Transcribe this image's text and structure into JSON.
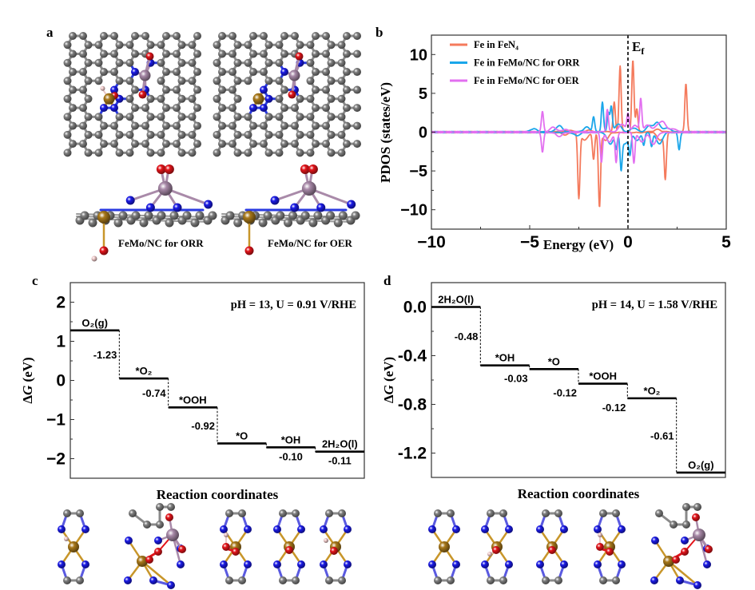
{
  "panel_labels": {
    "a": "a",
    "b": "b",
    "c": "c",
    "d": "d"
  },
  "panel_a": {
    "left_caption": "FeMo/NC for ORR",
    "right_caption": "FeMo/NC for OER"
  },
  "colors": {
    "carbon": "#7f7f7f",
    "nitrogen": "#1a1ae6",
    "oxygen": "#e3141a",
    "iron": "#a8781a",
    "molybdenum": "#a889a8",
    "hydrogen": "#efc9c9"
  },
  "chart_data": [
    {
      "id": "b",
      "type": "line",
      "title": "",
      "xlabel": "Energy (eV)",
      "ylabel": "PDOS (states/eV)",
      "xlim": [
        -10,
        5
      ],
      "ylim": [
        -12.5,
        12.5
      ],
      "xticks": [
        "−10",
        "−5",
        "0",
        "5"
      ],
      "xtick_values": [
        -10,
        -5,
        0,
        5
      ],
      "yticks": [
        "−10",
        "−5",
        "0",
        "5",
        "10"
      ],
      "ytick_values": [
        -10,
        -5,
        0,
        5,
        10
      ],
      "grid": false,
      "legend_position": "top-left",
      "fermi_level": {
        "x": 0,
        "label_main": "E",
        "label_sub": "f"
      },
      "series": [
        {
          "name": "Fe in FeN₄",
          "color": "#f47a5c",
          "up_peaks": [
            [
              -3.0,
              0.2
            ],
            [
              -2.0,
              0.2
            ],
            [
              -0.7,
              3.8
            ],
            [
              -0.4,
              8.5
            ],
            [
              0.25,
              9.2
            ],
            [
              0.45,
              3.0
            ],
            [
              1.5,
              0.3
            ],
            [
              2.95,
              6.2
            ]
          ],
          "down_peaks": [
            [
              -3.2,
              -0.3
            ],
            [
              -2.5,
              -8.4
            ],
            [
              -2.2,
              -1.0
            ],
            [
              -1.75,
              -3.5
            ],
            [
              -1.45,
              -9.5
            ],
            [
              -1.15,
              -1.0
            ],
            [
              1.65,
              -1.0
            ],
            [
              1.9,
              -5.8
            ]
          ]
        },
        {
          "name": "Fe in FeMo/NC for ORR",
          "color": "#1aa6ea",
          "up_peaks": [
            [
              -4.8,
              0.4
            ],
            [
              -3.5,
              0.8
            ],
            [
              -2.1,
              0.6
            ],
            [
              -1.75,
              1.9
            ],
            [
              -1.3,
              3.8
            ],
            [
              -1.0,
              2.5
            ],
            [
              -0.85,
              3.2
            ],
            [
              -0.5,
              1.0
            ],
            [
              0.3,
              0.5
            ],
            [
              1.1,
              0.8
            ],
            [
              1.5,
              1.2
            ],
            [
              2.0,
              0.5
            ]
          ],
          "down_peaks": [
            [
              -2.6,
              -0.4
            ],
            [
              -0.9,
              -1.5
            ],
            [
              -0.6,
              -2.0
            ],
            [
              -0.35,
              -4.3
            ],
            [
              -0.15,
              -1.5
            ],
            [
              0.1,
              -2.5
            ],
            [
              0.45,
              -1.0
            ],
            [
              0.8,
              -1.6
            ],
            [
              1.2,
              -1.8
            ],
            [
              1.6,
              -1.5
            ],
            [
              2.6,
              -2.2
            ]
          ]
        },
        {
          "name": "Fe in FeMo/NC for OER",
          "color": "#e26ff0",
          "up_peaks": [
            [
              -4.35,
              2.6
            ],
            [
              -3.8,
              0.6
            ],
            [
              -3.2,
              0.3
            ],
            [
              -1.05,
              2.9
            ],
            [
              -0.3,
              1.0
            ],
            [
              0.0,
              2.2
            ],
            [
              0.35,
              0.8
            ],
            [
              0.65,
              4.2
            ],
            [
              1.0,
              0.9
            ],
            [
              1.5,
              0.8
            ],
            [
              1.8,
              1.2
            ],
            [
              2.3,
              0.4
            ]
          ],
          "down_peaks": [
            [
              -4.35,
              -2.5
            ],
            [
              -3.5,
              -0.5
            ],
            [
              -1.35,
              -3.8
            ],
            [
              -0.95,
              -1.2
            ],
            [
              -0.6,
              -3.8
            ],
            [
              0.3,
              -3.9
            ],
            [
              0.7,
              -1.2
            ],
            [
              1.3,
              -1.5
            ]
          ]
        }
      ]
    },
    {
      "id": "c",
      "type": "line",
      "title": "",
      "xlabel": "Reaction coordinates",
      "ylabel_main": "Δ",
      "ylabel_italic": "G",
      "ylabel_unit": " (eV)",
      "ylim": [
        -2.5,
        2.5
      ],
      "yticks": [
        "2",
        "1",
        "0",
        "−1",
        "−2"
      ],
      "ytick_values": [
        2,
        1,
        0,
        -1,
        -2
      ],
      "annotation": "pH = 13, U = 0.91 V/RHE",
      "levels": [
        {
          "label": "O₂(g)",
          "value": 1.28
        },
        {
          "label": "*O₂",
          "value": 0.05
        },
        {
          "label": "*OOH",
          "value": -0.69
        },
        {
          "label": "*O",
          "value": -1.61
        },
        {
          "label": "*OH",
          "value": -1.71
        },
        {
          "label": "2H₂O(l)",
          "value": -1.82
        }
      ],
      "steps": [
        "-1.23",
        "-0.74",
        "-0.92",
        "-0.10",
        "-0.11"
      ]
    },
    {
      "id": "d",
      "type": "line",
      "title": "",
      "xlabel": "Reaction coordinates",
      "ylabel_main": "Δ",
      "ylabel_italic": "G",
      "ylabel_unit": " (eV)",
      "ylim": [
        -1.4,
        0.2
      ],
      "yticks": [
        "0.0",
        "-0.4",
        "-0.8",
        "-1.2"
      ],
      "ytick_values": [
        0,
        -0.4,
        -0.8,
        -1.2
      ],
      "annotation": "pH = 14, U = 1.58 V/RHE",
      "levels": [
        {
          "label": "2H₂O(l)",
          "value": 0.0
        },
        {
          "label": "*OH",
          "value": -0.48
        },
        {
          "label": "*O",
          "value": -0.51
        },
        {
          "label": "*OOH",
          "value": -0.63
        },
        {
          "label": "*O₂",
          "value": -0.75
        },
        {
          "label": "O₂(g)",
          "value": -1.36
        }
      ],
      "steps": [
        "-0.48",
        "-0.03",
        "-0.12",
        "-0.12",
        "-0.61"
      ]
    }
  ]
}
